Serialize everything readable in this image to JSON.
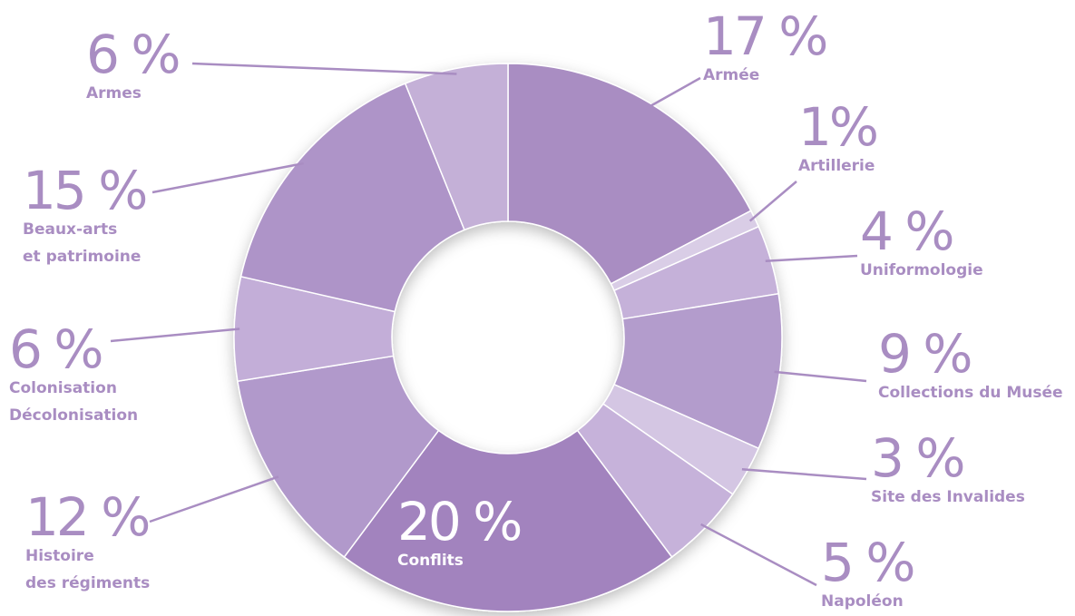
{
  "chart_data": {
    "type": "donut",
    "categories": [
      "Armée",
      "Artillerie",
      "Uniformologie",
      "Collections du Musée",
      "Site des Invalides",
      "Napoléon",
      "Conflits",
      "Histoire\ndes régiments",
      "Colonisation\nDécolonisation",
      "Beaux-arts\net patrimoine",
      "Armes"
    ],
    "values": [
      17,
      1,
      4,
      9,
      3,
      5,
      20,
      12,
      6,
      15,
      6
    ],
    "value_labels": [
      "17 %",
      "1%",
      "4 %",
      "9 %",
      "3 %",
      "5 %",
      "20 %",
      "12 %",
      "6 %",
      "15 %",
      "6 %"
    ],
    "colors": [
      "#a98dc2",
      "#d9cde6",
      "#c5b1d9",
      "#b39ccc",
      "#d4c6e3",
      "#c6b2da",
      "#a283be",
      "#b199cb",
      "#c3aed8",
      "#ae94c8",
      "#c4b0d7"
    ]
  }
}
